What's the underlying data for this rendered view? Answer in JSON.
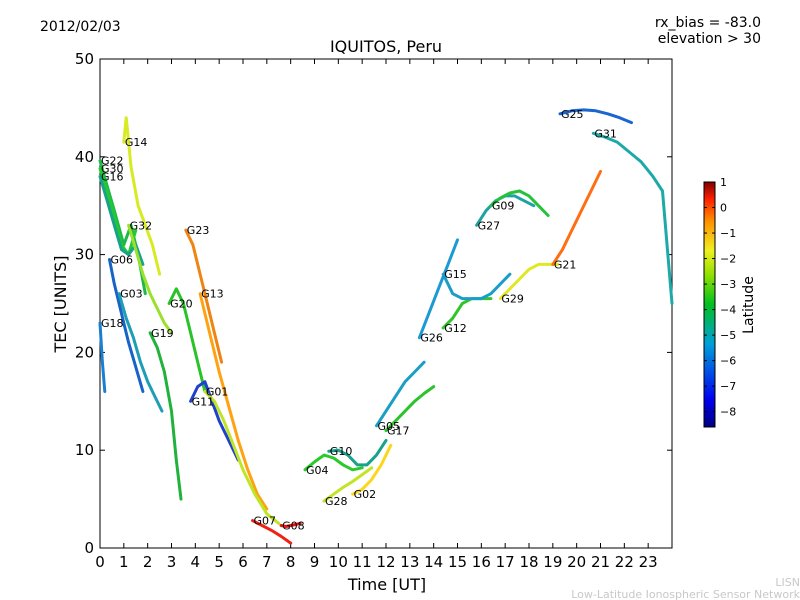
{
  "header": {
    "date": "2012/02/03",
    "rx_bias": "rx_bias = -83.0",
    "elevation": "elevation > 30"
  },
  "footer": {
    "line1": "LISN",
    "line2": "Low-Latitude Ionospheric Sensor Network"
  },
  "colorbar": {
    "label": "Latitude",
    "ticks": [
      "1",
      "0",
      "−1",
      "−2",
      "−3",
      "−4",
      "−5",
      "−6",
      "−7",
      "−8"
    ],
    "range": [
      -8.6,
      1.0
    ]
  },
  "chart_data": {
    "type": "scatter",
    "title": "IQUITOS, Peru",
    "xlabel": "Time [UT]",
    "ylabel": "TEC [UNITS]",
    "xlim": [
      0,
      24
    ],
    "ylim": [
      0,
      50
    ],
    "xticks": [
      "0",
      "1",
      "2",
      "3",
      "4",
      "5",
      "6",
      "7",
      "8",
      "9",
      "10",
      "11",
      "12",
      "13",
      "14",
      "15",
      "16",
      "17",
      "18",
      "19",
      "20",
      "21",
      "22",
      "23"
    ],
    "yticks": [
      "0",
      "10",
      "20",
      "30",
      "40",
      "50"
    ],
    "grid": false,
    "series": [
      {
        "name": "G22",
        "color": "#1eb84a",
        "x": [
          0.0,
          0.3,
          0.6,
          1.0,
          1.3,
          1.6,
          1.9
        ],
        "y": [
          39.6,
          37.0,
          34.5,
          31.0,
          33.0,
          30.0,
          26.0
        ]
      },
      {
        "name": "G30",
        "color": "#23c832",
        "x": [
          0.0,
          0.3,
          0.6,
          0.9,
          1.2,
          1.5
        ],
        "y": [
          38.8,
          36.5,
          34.0,
          31.0,
          30.0,
          32.5
        ]
      },
      {
        "name": "G16",
        "color": "#19a28a",
        "x": [
          0.0,
          0.3,
          0.6,
          0.9,
          1.2,
          1.5,
          1.8
        ],
        "y": [
          38.0,
          35.5,
          33.0,
          30.5,
          30.0,
          31.0,
          29.0
        ]
      },
      {
        "name": "G14",
        "color": "#d8ea22",
        "x": [
          1.0,
          1.1,
          1.3,
          1.6,
          1.9,
          2.2,
          2.5
        ],
        "y": [
          41.5,
          44.0,
          39.0,
          35.0,
          33.0,
          31.0,
          28.0
        ]
      },
      {
        "name": "G32",
        "color": "#9be02c",
        "x": [
          1.2,
          1.5,
          1.8,
          2.1,
          2.4,
          2.7,
          3.0
        ],
        "y": [
          33.0,
          30.5,
          28.0,
          26.0,
          24.5,
          23.0,
          22.0
        ]
      },
      {
        "name": "G06",
        "color": "#1763c8",
        "x": [
          0.4,
          0.6,
          0.8,
          1.0,
          1.2,
          1.5,
          1.8
        ],
        "y": [
          29.5,
          27.0,
          25.0,
          23.0,
          21.0,
          18.5,
          16.0
        ]
      },
      {
        "name": "G03",
        "color": "#1e9eb4",
        "x": [
          0.8,
          1.1,
          1.4,
          1.7,
          2.0,
          2.3,
          2.6
        ],
        "y": [
          26.0,
          23.5,
          21.5,
          19.0,
          17.0,
          15.5,
          14.0
        ]
      },
      {
        "name": "G18",
        "color": "#1a7fd0",
        "x": [
          0.0,
          0.05,
          0.1,
          0.15,
          0.2
        ],
        "y": [
          23.0,
          21.0,
          19.0,
          17.5,
          16.0
        ]
      },
      {
        "name": "G20",
        "color": "#29c229",
        "x": [
          2.9,
          3.2,
          3.5,
          3.8,
          4.1,
          4.4
        ],
        "y": [
          25.0,
          26.5,
          25.0,
          22.0,
          19.0,
          16.0
        ]
      },
      {
        "name": "G19",
        "color": "#20b23a",
        "x": [
          2.1,
          2.4,
          2.7,
          3.0,
          3.2,
          3.4
        ],
        "y": [
          22.0,
          20.5,
          18.0,
          14.0,
          9.0,
          5.0
        ]
      },
      {
        "name": "G23",
        "color": "#ef8412",
        "x": [
          3.6,
          3.9,
          4.2,
          4.5,
          4.8,
          5.1
        ],
        "y": [
          32.5,
          31.0,
          28.0,
          25.0,
          22.0,
          19.0
        ]
      },
      {
        "name": "G13",
        "color": "#ffa212",
        "x": [
          4.2,
          4.6,
          5.0,
          5.4,
          5.8,
          6.2,
          6.6,
          7.0
        ],
        "y": [
          26.0,
          22.0,
          18.0,
          14.5,
          11.0,
          8.0,
          5.5,
          4.0
        ]
      },
      {
        "name": "G11",
        "color": "#1f41cc",
        "x": [
          3.8,
          4.1,
          4.4,
          4.7,
          5.0,
          5.4,
          5.8
        ],
        "y": [
          15.0,
          16.5,
          17.0,
          15.0,
          13.0,
          11.0,
          9.0
        ]
      },
      {
        "name": "G01",
        "color": "#bfe524",
        "x": [
          4.4,
          4.8,
          5.2,
          5.6,
          6.0,
          6.5,
          7.0,
          7.5
        ],
        "y": [
          16.0,
          15.0,
          13.0,
          10.5,
          8.0,
          5.5,
          3.5,
          2.5
        ]
      },
      {
        "name": "G07",
        "color": "#ef2214",
        "x": [
          6.4,
          6.8,
          7.2,
          7.6,
          8.0
        ],
        "y": [
          2.8,
          2.3,
          1.8,
          1.2,
          0.5
        ]
      },
      {
        "name": "G08",
        "color": "#e81414",
        "x": [
          7.6,
          7.8,
          8.0,
          8.2,
          8.4
        ],
        "y": [
          2.3,
          2.2,
          2.3,
          2.4,
          2.5
        ]
      },
      {
        "name": "G04",
        "color": "#2aca2a",
        "x": [
          8.6,
          9.0,
          9.4,
          9.8,
          10.2,
          10.6,
          11.0
        ],
        "y": [
          8.0,
          8.8,
          9.5,
          9.2,
          8.5,
          8.0,
          8.2
        ]
      },
      {
        "name": "G10",
        "color": "#19a28a",
        "x": [
          9.6,
          10.0,
          10.4,
          10.8,
          11.2,
          11.6,
          12.0
        ],
        "y": [
          9.9,
          10.0,
          9.5,
          8.5,
          8.5,
          9.5,
          11.0
        ]
      },
      {
        "name": "G28",
        "color": "#c3e424",
        "x": [
          9.4,
          9.8,
          10.2,
          10.6,
          11.0,
          11.4
        ],
        "y": [
          4.8,
          5.5,
          6.2,
          6.8,
          7.5,
          8.2
        ]
      },
      {
        "name": "G02",
        "color": "#fbd71c",
        "x": [
          10.6,
          11.0,
          11.4,
          11.8,
          12.2
        ],
        "y": [
          5.5,
          6.0,
          7.0,
          8.5,
          10.5
        ]
      },
      {
        "name": "G05",
        "color": "#1a9fc4",
        "x": [
          11.6,
          12.0,
          12.4,
          12.8,
          13.2,
          13.6
        ],
        "y": [
          12.5,
          14.0,
          15.5,
          17.0,
          18.0,
          19.0
        ]
      },
      {
        "name": "G17",
        "color": "#2cc42c",
        "x": [
          12.0,
          12.4,
          12.8,
          13.2,
          13.6,
          14.0
        ],
        "y": [
          12.0,
          13.0,
          14.0,
          15.0,
          15.8,
          16.5
        ]
      },
      {
        "name": "G26",
        "color": "#1d9ad4",
        "x": [
          13.4,
          13.8,
          14.2,
          14.6,
          15.0
        ],
        "y": [
          21.5,
          24.0,
          26.5,
          29.0,
          31.5
        ]
      },
      {
        "name": "G12",
        "color": "#31c52a",
        "x": [
          14.4,
          14.8,
          15.2,
          15.6,
          16.0,
          16.4
        ],
        "y": [
          22.5,
          23.5,
          25.0,
          25.5,
          25.5,
          25.5
        ]
      },
      {
        "name": "G15",
        "color": "#1a9ec8",
        "x": [
          14.4,
          14.8,
          15.2,
          15.6,
          16.0,
          16.4,
          16.8,
          17.2
        ],
        "y": [
          28.0,
          26.0,
          25.5,
          25.5,
          25.5,
          26.0,
          27.0,
          28.0
        ]
      },
      {
        "name": "G27",
        "color": "#1ea2a2",
        "x": [
          15.8,
          16.2,
          16.6,
          17.0,
          17.4,
          17.8,
          18.2
        ],
        "y": [
          33.0,
          34.5,
          35.5,
          36.0,
          36.0,
          35.5,
          35.0
        ]
      },
      {
        "name": "G09",
        "color": "#26c23a",
        "x": [
          16.4,
          16.8,
          17.2,
          17.6,
          18.0,
          18.4,
          18.8
        ],
        "y": [
          35.0,
          35.8,
          36.3,
          36.5,
          36.0,
          35.0,
          34.0
        ]
      },
      {
        "name": "G29",
        "color": "#e0e824",
        "x": [
          16.8,
          17.2,
          17.6,
          18.0,
          18.4,
          18.8,
          19.2
        ],
        "y": [
          25.5,
          26.5,
          27.5,
          28.5,
          29.0,
          29.0,
          29.0
        ]
      },
      {
        "name": "G21",
        "color": "#ff6e12",
        "x": [
          19.0,
          19.4,
          19.8,
          20.2,
          20.6,
          21.0
        ],
        "y": [
          29.0,
          30.5,
          32.5,
          34.5,
          36.5,
          38.5
        ]
      },
      {
        "name": "G25",
        "color": "#1a66d0",
        "x": [
          19.3,
          19.8,
          20.3,
          20.8,
          21.3,
          21.8,
          22.3
        ],
        "y": [
          44.4,
          44.7,
          44.8,
          44.7,
          44.4,
          44.0,
          43.5
        ]
      },
      {
        "name": "G31",
        "color": "#1ea9a9",
        "x": [
          20.7,
          21.2,
          21.7,
          22.2,
          22.7,
          23.2,
          23.6,
          24.0
        ],
        "y": [
          42.4,
          42.0,
          41.5,
          40.5,
          39.5,
          38.0,
          36.5,
          25.0
        ]
      }
    ]
  }
}
